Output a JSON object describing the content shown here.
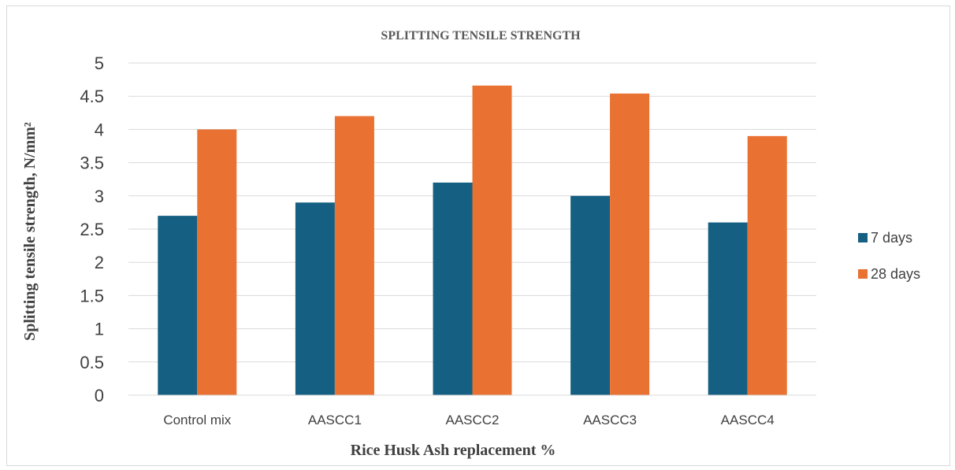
{
  "chart_data": {
    "type": "bar",
    "title": "SPLITTING TENSILE STRENGTH",
    "xlabel": "Rice Husk Ash replacement %",
    "ylabel": "Splitting tensile strength, N/mm²",
    "categories": [
      "Control mix",
      "AASCC1",
      "AASCC2",
      "AASCC3",
      "AASCC4"
    ],
    "series": [
      {
        "name": "7 days",
        "color": "#156082",
        "values": [
          2.7,
          2.9,
          3.2,
          3.0,
          2.6
        ]
      },
      {
        "name": "28 days",
        "color": "#E97132",
        "values": [
          4.0,
          4.2,
          4.66,
          4.54,
          3.9
        ]
      }
    ],
    "ylim": [
      0,
      5
    ],
    "yticks": [
      "0",
      "0.5",
      "1",
      "1.5",
      "2",
      "2.5",
      "3",
      "3.5",
      "4",
      "4.5",
      "5"
    ],
    "ystep": 0.5,
    "grid": true,
    "legend_position": "right"
  }
}
